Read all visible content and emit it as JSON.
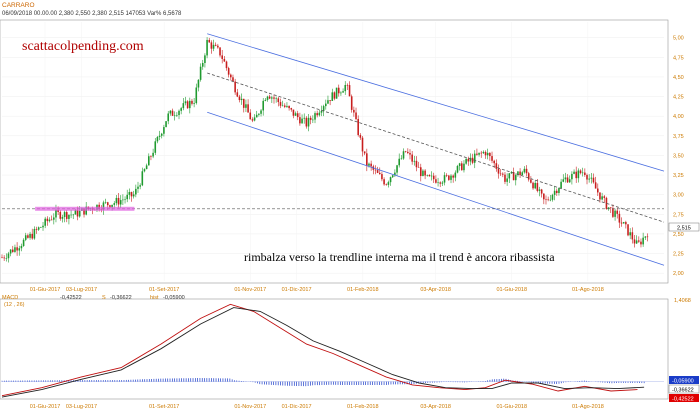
{
  "header": {
    "symbol": "CARRARO",
    "ohlc": "06/09/2018  00.00.00   2,380   2,550   2,380   2,515   147053   Var% 6,5678"
  },
  "watermark": "scattacolpending.com",
  "annotation": "rimbalza verso la trendline interna ma il trend è ancora ribassista",
  "macd": {
    "name": "MACD",
    "params": "(12 , 26)",
    "line": "-0,42522",
    "signal_label": "S",
    "signal": "-0,36622",
    "hist_label": "hist",
    "hist": "-0,05900",
    "top_label": "1,4068",
    "badges": [
      {
        "text": "-0,05900",
        "color": "#1a3cc8"
      },
      {
        "text": "-0,36622",
        "color": "#ffffff"
      },
      {
        "text": "-0,42522",
        "color": "#e00000"
      }
    ]
  },
  "chart_data": [
    {
      "type": "candlestick",
      "title": "CARRARO",
      "ylim": [
        1.9,
        5.2
      ],
      "y_ticks": [
        "5,00",
        "4,75",
        "4,50",
        "4,25",
        "4,00",
        "3,75",
        "3,50",
        "3,25",
        "3,00",
        "2,75",
        "2,50",
        "2,25",
        "2,00"
      ],
      "x_ticks": [
        "01-Giu-2017",
        "03-Lug-2017",
        "01-Set-2017",
        "01-Nov-2017",
        "01-Dic-2017",
        "01-Feb-2018",
        "03-Apr-2018",
        "01-Giu-2018",
        "01-Ago-2018"
      ],
      "last_price": "2,515",
      "levels": [
        {
          "value": 2.82,
          "style": "dashed"
        }
      ],
      "support_zone": {
        "x0": 0.05,
        "x1": 0.2,
        "value": 2.82
      },
      "channel": {
        "upper": [
          [
            0.31,
            5.05
          ],
          [
            1.0,
            3.3
          ]
        ],
        "middle": [
          [
            0.31,
            4.55
          ],
          [
            1.0,
            2.65
          ]
        ],
        "lower": [
          [
            0.31,
            4.05
          ],
          [
            1.0,
            2.1
          ]
        ]
      },
      "series": [
        {
          "points": [
            [
              0.0,
              2.2
            ],
            [
              0.04,
              2.45
            ],
            [
              0.08,
              2.75
            ],
            [
              0.11,
              2.75
            ],
            [
              0.14,
              2.85
            ],
            [
              0.17,
              2.9
            ],
            [
              0.2,
              3.0
            ],
            [
              0.22,
              3.4
            ],
            [
              0.25,
              4.0
            ],
            [
              0.27,
              4.1
            ],
            [
              0.29,
              4.2
            ],
            [
              0.31,
              4.95
            ],
            [
              0.33,
              4.8
            ],
            [
              0.35,
              4.4
            ],
            [
              0.38,
              3.9
            ],
            [
              0.4,
              4.3
            ],
            [
              0.43,
              4.1
            ],
            [
              0.46,
              3.9
            ],
            [
              0.49,
              4.2
            ],
            [
              0.52,
              4.4
            ],
            [
              0.55,
              3.4
            ],
            [
              0.58,
              3.15
            ],
            [
              0.61,
              3.55
            ],
            [
              0.64,
              3.2
            ],
            [
              0.67,
              3.2
            ],
            [
              0.7,
              3.4
            ],
            [
              0.73,
              3.55
            ],
            [
              0.76,
              3.2
            ],
            [
              0.79,
              3.3
            ],
            [
              0.82,
              2.9
            ],
            [
              0.85,
              3.2
            ],
            [
              0.88,
              3.3
            ],
            [
              0.91,
              2.9
            ],
            [
              0.94,
              2.6
            ],
            [
              0.96,
              2.35
            ],
            [
              0.975,
              2.52
            ]
          ]
        }
      ]
    },
    {
      "type": "line",
      "title": "MACD",
      "series": [
        {
          "name": "MACD",
          "points": [
            [
              0.0,
              -0.55
            ],
            [
              0.06,
              -0.38
            ],
            [
              0.12,
              -0.15
            ],
            [
              0.18,
              0.05
            ],
            [
              0.24,
              0.55
            ],
            [
              0.3,
              1.1
            ],
            [
              0.345,
              1.4
            ],
            [
              0.38,
              1.25
            ],
            [
              0.42,
              0.9
            ],
            [
              0.46,
              0.55
            ],
            [
              0.5,
              0.35
            ],
            [
              0.54,
              0.1
            ],
            [
              0.58,
              -0.15
            ],
            [
              0.62,
              -0.32
            ],
            [
              0.66,
              -0.38
            ],
            [
              0.7,
              -0.42
            ],
            [
              0.73,
              -0.38
            ],
            [
              0.76,
              -0.22
            ],
            [
              0.8,
              -0.3
            ],
            [
              0.84,
              -0.45
            ],
            [
              0.88,
              -0.35
            ],
            [
              0.92,
              -0.45
            ],
            [
              0.96,
              -0.42
            ]
          ]
        },
        {
          "name": "Signal",
          "points": [
            [
              0.0,
              -0.58
            ],
            [
              0.06,
              -0.42
            ],
            [
              0.12,
              -0.2
            ],
            [
              0.18,
              0.0
            ],
            [
              0.24,
              0.45
            ],
            [
              0.3,
              0.98
            ],
            [
              0.35,
              1.33
            ],
            [
              0.39,
              1.25
            ],
            [
              0.43,
              0.95
            ],
            [
              0.47,
              0.62
            ],
            [
              0.51,
              0.4
            ],
            [
              0.55,
              0.15
            ],
            [
              0.59,
              -0.1
            ],
            [
              0.63,
              -0.28
            ],
            [
              0.67,
              -0.38
            ],
            [
              0.71,
              -0.4
            ],
            [
              0.74,
              -0.4
            ],
            [
              0.77,
              -0.28
            ],
            [
              0.81,
              -0.28
            ],
            [
              0.85,
              -0.4
            ],
            [
              0.89,
              -0.38
            ],
            [
              0.93,
              -0.4
            ],
            [
              0.97,
              -0.37
            ]
          ]
        }
      ],
      "histogram_baseline": -0.25
    }
  ]
}
